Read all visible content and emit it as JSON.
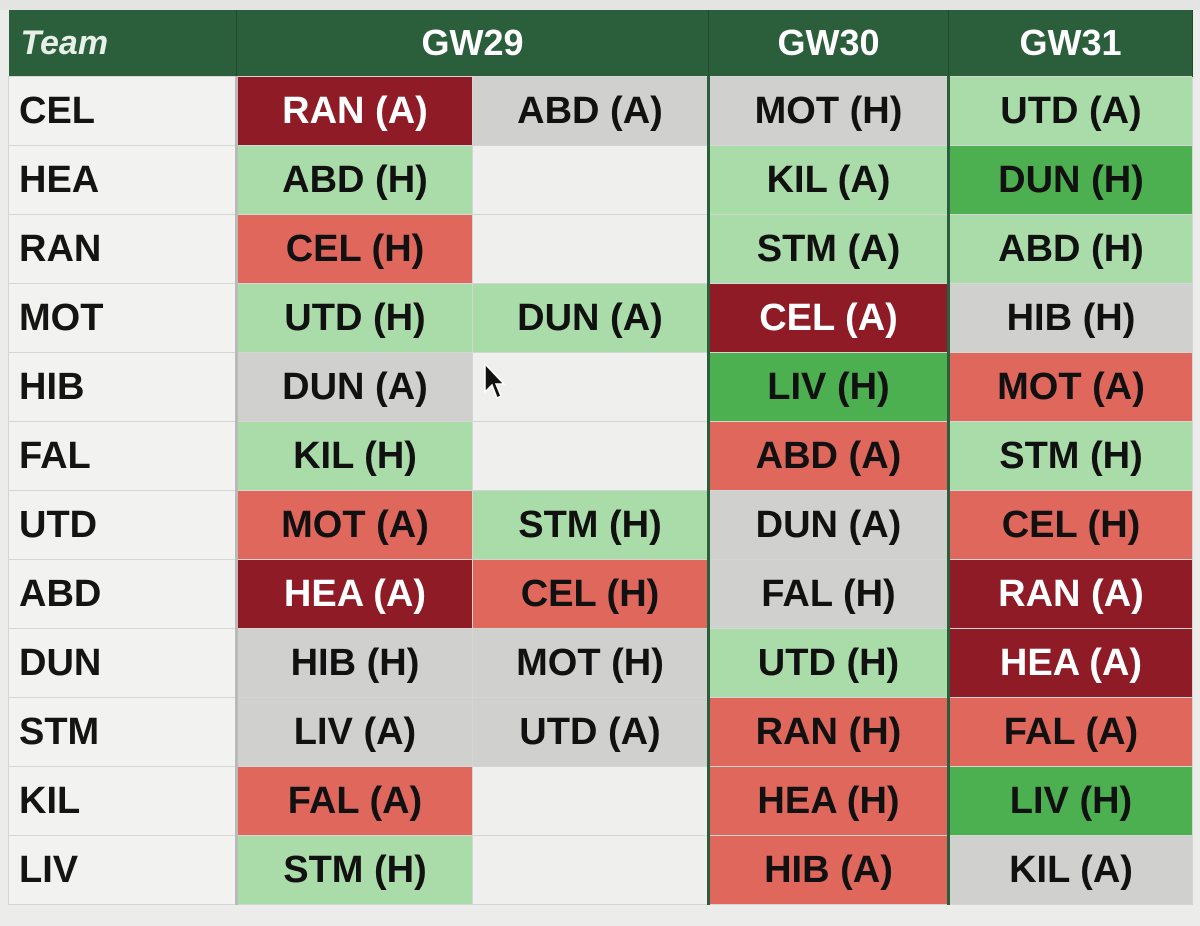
{
  "header": {
    "team": "Team",
    "gw29": "GW29",
    "gw30": "GW30",
    "gw31": "GW31"
  },
  "colors": {
    "header_green": "#2b5e3a",
    "dark_red": "#8e1b25",
    "red": "#e0675c",
    "grey": "#d0d1cf",
    "light_green": "#a9dca8",
    "green": "#4caf50"
  },
  "rows": [
    {
      "team": "CEL",
      "cells": [
        {
          "text": "RAN (A)",
          "color": "darkred"
        },
        {
          "text": "ABD (A)",
          "color": "grey"
        },
        {
          "text": "MOT (H)",
          "color": "grey"
        },
        {
          "text": "UTD (A)",
          "color": "lightgrn"
        }
      ]
    },
    {
      "team": "HEA",
      "cells": [
        {
          "text": "ABD (H)",
          "color": "lightgrn"
        },
        {
          "text": "",
          "color": "empty"
        },
        {
          "text": "KIL (A)",
          "color": "lightgrn"
        },
        {
          "text": "DUN (H)",
          "color": "green"
        }
      ]
    },
    {
      "team": "RAN",
      "cells": [
        {
          "text": "CEL (H)",
          "color": "red"
        },
        {
          "text": "",
          "color": "empty"
        },
        {
          "text": "STM (A)",
          "color": "lightgrn"
        },
        {
          "text": "ABD (H)",
          "color": "lightgrn"
        }
      ]
    },
    {
      "team": "MOT",
      "cells": [
        {
          "text": "UTD (H)",
          "color": "lightgrn"
        },
        {
          "text": "DUN (A)",
          "color": "lightgrn"
        },
        {
          "text": "CEL (A)",
          "color": "darkred"
        },
        {
          "text": "HIB (H)",
          "color": "grey"
        }
      ]
    },
    {
      "team": "HIB",
      "cells": [
        {
          "text": "DUN (A)",
          "color": "grey"
        },
        {
          "text": "",
          "color": "empty"
        },
        {
          "text": "LIV (H)",
          "color": "green"
        },
        {
          "text": "MOT (A)",
          "color": "red"
        }
      ]
    },
    {
      "team": "FAL",
      "cells": [
        {
          "text": "KIL (H)",
          "color": "lightgrn"
        },
        {
          "text": "",
          "color": "empty"
        },
        {
          "text": "ABD (A)",
          "color": "red"
        },
        {
          "text": "STM (H)",
          "color": "lightgrn"
        }
      ]
    },
    {
      "team": "UTD",
      "cells": [
        {
          "text": "MOT (A)",
          "color": "red"
        },
        {
          "text": "STM (H)",
          "color": "lightgrn"
        },
        {
          "text": "DUN (A)",
          "color": "grey"
        },
        {
          "text": "CEL (H)",
          "color": "red"
        }
      ]
    },
    {
      "team": "ABD",
      "cells": [
        {
          "text": "HEA (A)",
          "color": "darkred"
        },
        {
          "text": "CEL (H)",
          "color": "red"
        },
        {
          "text": "FAL (H)",
          "color": "grey"
        },
        {
          "text": "RAN (A)",
          "color": "darkred"
        }
      ]
    },
    {
      "team": "DUN",
      "cells": [
        {
          "text": "HIB (H)",
          "color": "grey"
        },
        {
          "text": "MOT (H)",
          "color": "grey"
        },
        {
          "text": "UTD (H)",
          "color": "lightgrn"
        },
        {
          "text": "HEA (A)",
          "color": "darkred"
        }
      ]
    },
    {
      "team": "STM",
      "cells": [
        {
          "text": "LIV (A)",
          "color": "grey"
        },
        {
          "text": "UTD (A)",
          "color": "grey"
        },
        {
          "text": "RAN (H)",
          "color": "red"
        },
        {
          "text": "FAL (A)",
          "color": "red"
        }
      ]
    },
    {
      "team": "KIL",
      "cells": [
        {
          "text": "FAL (A)",
          "color": "red"
        },
        {
          "text": "",
          "color": "empty"
        },
        {
          "text": "HEA (H)",
          "color": "red"
        },
        {
          "text": "LIV (H)",
          "color": "green"
        }
      ]
    },
    {
      "team": "LIV",
      "cells": [
        {
          "text": "STM (H)",
          "color": "lightgrn"
        },
        {
          "text": "",
          "color": "empty"
        },
        {
          "text": "HIB (A)",
          "color": "red"
        },
        {
          "text": "KIL (A)",
          "color": "grey"
        }
      ]
    }
  ]
}
